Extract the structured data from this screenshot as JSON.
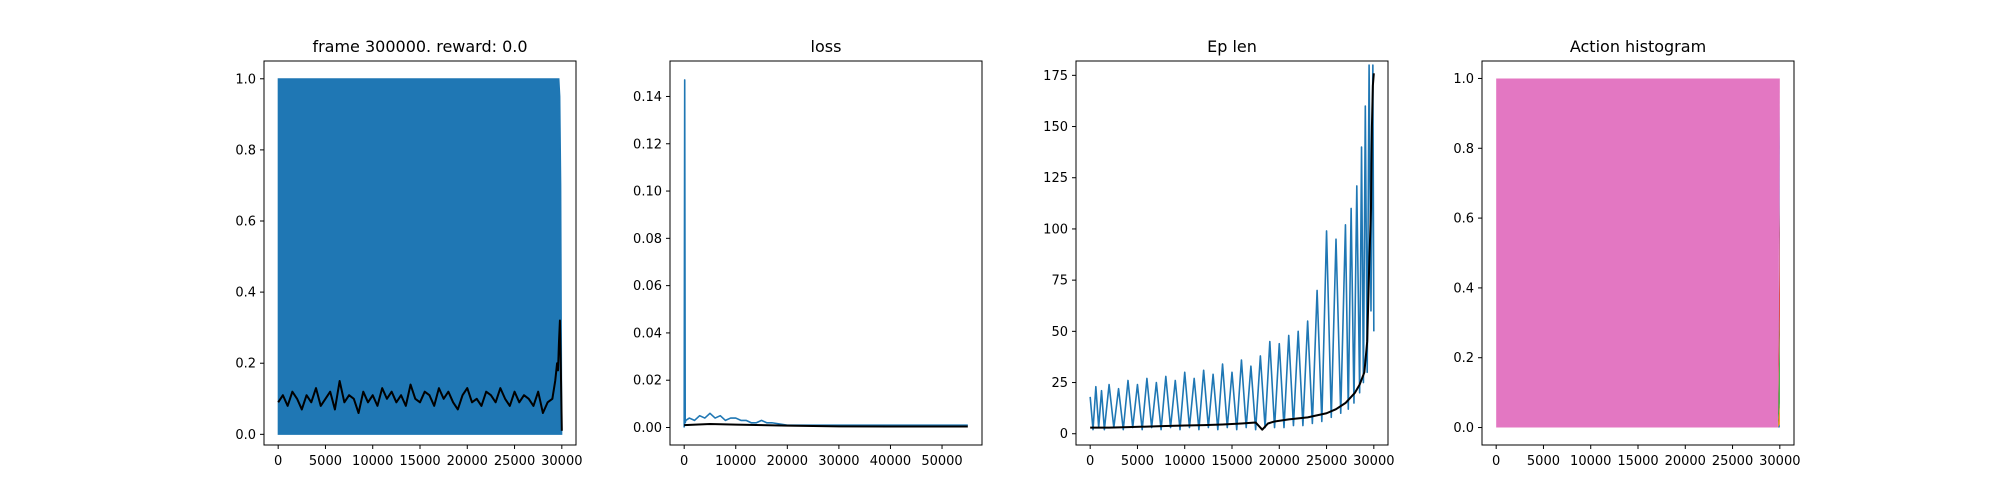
{
  "figure": {
    "background": "#ffffff"
  },
  "colors": {
    "raw": "#1f77b4",
    "smooth": "#000000",
    "hist": [
      "#1f77b4",
      "#ff7f0e",
      "#2ca02c",
      "#d62728",
      "#9467bd",
      "#8c564b",
      "#e377c2"
    ]
  },
  "chart_data": [
    {
      "type": "line",
      "title": "frame 300000. reward: 0.0",
      "xlabel": "",
      "ylabel": "",
      "xlim": [
        -1500,
        31500
      ],
      "ylim": [
        -0.03,
        1.05
      ],
      "xticks": [
        0,
        5000,
        10000,
        15000,
        20000,
        25000,
        30000
      ],
      "yticks": [
        0.0,
        0.2,
        0.4,
        0.6,
        0.8,
        1.0
      ],
      "ytick_labels": [
        "0.0",
        "0.2",
        "0.4",
        "0.6",
        "0.8",
        "1.0"
      ],
      "grid": false,
      "series": [
        {
          "role": "raw",
          "style": "band",
          "x": [
            0,
            29700,
            29800,
            29900,
            30000
          ],
          "low": [
            0,
            0,
            0,
            0,
            0
          ],
          "high": [
            1.0,
            1.0,
            0.95,
            0.7,
            0.05
          ]
        },
        {
          "role": "smooth",
          "style": "line",
          "x": [
            0,
            500,
            1000,
            1500,
            2000,
            2500,
            3000,
            3500,
            4000,
            4500,
            5000,
            5500,
            6000,
            6500,
            7000,
            7500,
            8000,
            8500,
            9000,
            9500,
            10000,
            10500,
            11000,
            11500,
            12000,
            12500,
            13000,
            13500,
            14000,
            14500,
            15000,
            15500,
            16000,
            16500,
            17000,
            17500,
            18000,
            18500,
            19000,
            19500,
            20000,
            20500,
            21000,
            21500,
            22000,
            22500,
            23000,
            23500,
            24000,
            24500,
            25000,
            25500,
            26000,
            26500,
            27000,
            27500,
            28000,
            28500,
            29000,
            29300,
            29500,
            29600,
            29700,
            29800,
            29900,
            30000
          ],
          "y": [
            0.09,
            0.11,
            0.08,
            0.12,
            0.1,
            0.07,
            0.11,
            0.09,
            0.13,
            0.08,
            0.1,
            0.12,
            0.07,
            0.15,
            0.09,
            0.11,
            0.1,
            0.06,
            0.12,
            0.09,
            0.11,
            0.08,
            0.13,
            0.1,
            0.12,
            0.09,
            0.11,
            0.08,
            0.14,
            0.1,
            0.09,
            0.12,
            0.11,
            0.08,
            0.13,
            0.1,
            0.12,
            0.09,
            0.07,
            0.11,
            0.13,
            0.09,
            0.1,
            0.08,
            0.12,
            0.11,
            0.09,
            0.13,
            0.1,
            0.08,
            0.12,
            0.09,
            0.11,
            0.1,
            0.08,
            0.12,
            0.06,
            0.09,
            0.1,
            0.15,
            0.2,
            0.18,
            0.26,
            0.32,
            0.18,
            0.01
          ]
        }
      ]
    },
    {
      "type": "line",
      "title": "loss",
      "xlabel": "",
      "ylabel": "",
      "xlim": [
        -2750,
        57750
      ],
      "ylim": [
        -0.0074,
        0.155
      ],
      "xticks": [
        0,
        10000,
        20000,
        30000,
        40000,
        50000
      ],
      "yticks": [
        0.0,
        0.02,
        0.04,
        0.06,
        0.08,
        0.1,
        0.12,
        0.14
      ],
      "ytick_labels": [
        "0.00",
        "0.02",
        "0.04",
        "0.06",
        "0.08",
        "0.10",
        "0.12",
        "0.14"
      ],
      "grid": false,
      "series": [
        {
          "role": "raw",
          "style": "line",
          "x": [
            0,
            100,
            200,
            300,
            1000,
            2000,
            3000,
            4000,
            5000,
            6000,
            7000,
            8000,
            9000,
            10000,
            11000,
            12000,
            13000,
            14000,
            15000,
            16000,
            17000,
            20000,
            25000,
            30000,
            35000,
            40000,
            45000,
            50000,
            55000
          ],
          "y": [
            0.0,
            0.147,
            0.002,
            0.003,
            0.004,
            0.003,
            0.005,
            0.004,
            0.006,
            0.004,
            0.005,
            0.003,
            0.004,
            0.004,
            0.003,
            0.003,
            0.002,
            0.002,
            0.003,
            0.002,
            0.002,
            0.001,
            0.001,
            0.001,
            0.001,
            0.001,
            0.001,
            0.001,
            0.001
          ]
        },
        {
          "role": "smooth",
          "style": "line",
          "x": [
            0,
            5000,
            10000,
            20000,
            30000,
            40000,
            50000,
            55000
          ],
          "y": [
            0.001,
            0.0015,
            0.0012,
            0.0008,
            0.0005,
            0.0004,
            0.0004,
            0.0004
          ]
        }
      ]
    },
    {
      "type": "line",
      "title": "Ep len",
      "xlabel": "",
      "ylabel": "",
      "xlim": [
        -1500,
        31500
      ],
      "ylim": [
        -5.5,
        182
      ],
      "xticks": [
        0,
        5000,
        10000,
        15000,
        20000,
        25000,
        30000
      ],
      "yticks": [
        0,
        25,
        50,
        75,
        100,
        125,
        150,
        175
      ],
      "ytick_labels": [
        "0",
        "25",
        "50",
        "75",
        "100",
        "125",
        "150",
        "175"
      ],
      "grid": false,
      "series": [
        {
          "role": "raw",
          "style": "line",
          "x": [
            0,
            300,
            600,
            900,
            1200,
            1500,
            2000,
            2500,
            3000,
            3500,
            4000,
            4500,
            5000,
            5500,
            6000,
            6500,
            7000,
            7500,
            8000,
            8500,
            9000,
            9500,
            10000,
            10500,
            11000,
            11500,
            12000,
            12500,
            13000,
            13500,
            14000,
            14500,
            15000,
            15500,
            16000,
            16500,
            17000,
            17500,
            18000,
            18500,
            19000,
            19500,
            20000,
            20500,
            21000,
            21500,
            22000,
            22500,
            23000,
            23500,
            24000,
            24500,
            25000,
            25500,
            26000,
            26500,
            27000,
            27300,
            27600,
            27900,
            28200,
            28500,
            28700,
            28900,
            29100,
            29300,
            29500,
            29700,
            29900,
            30000
          ],
          "y": [
            18,
            2,
            23,
            3,
            21,
            2,
            24,
            3,
            22,
            2,
            26,
            3,
            24,
            2,
            27,
            3,
            25,
            2,
            28,
            3,
            26,
            2,
            30,
            3,
            27,
            2,
            31,
            3,
            29,
            2,
            34,
            3,
            30,
            2,
            36,
            3,
            33,
            2,
            38,
            3,
            45,
            3,
            44,
            3,
            48,
            4,
            50,
            4,
            55,
            5,
            70,
            6,
            99,
            8,
            95,
            10,
            102,
            12,
            110,
            15,
            121,
            20,
            140,
            25,
            160,
            30,
            180,
            60,
            180,
            50
          ]
        },
        {
          "role": "smooth",
          "style": "line",
          "x": [
            0,
            2000,
            4000,
            6000,
            8000,
            10000,
            12000,
            14000,
            16000,
            17500,
            18200,
            18800,
            19500,
            21000,
            23000,
            25000,
            26000,
            27000,
            28000,
            28500,
            29000,
            29300,
            29500,
            29700,
            29800,
            29900,
            30000
          ],
          "y": [
            3,
            3,
            3.2,
            3.5,
            3.8,
            4,
            4.2,
            4.5,
            5,
            5.5,
            2,
            5,
            6,
            7,
            8,
            10,
            12,
            15,
            20,
            24,
            30,
            45,
            80,
            110,
            150,
            170,
            176
          ]
        }
      ]
    },
    {
      "type": "area",
      "title": "Action histogram",
      "xlabel": "",
      "ylabel": "",
      "xlim": [
        -1500,
        31500
      ],
      "ylim": [
        -0.05,
        1.05
      ],
      "xticks": [
        0,
        5000,
        10000,
        15000,
        20000,
        25000,
        30000
      ],
      "yticks": [
        0.0,
        0.2,
        0.4,
        0.6,
        0.8,
        1.0
      ],
      "ytick_labels": [
        "0.0",
        "0.2",
        "0.4",
        "0.6",
        "0.8",
        "1.0"
      ],
      "grid": false,
      "x": [
        0,
        29800,
        30000
      ],
      "series": [
        {
          "values": [
            0,
            0,
            0.01
          ],
          "color_index": 0
        },
        {
          "values": [
            0,
            0,
            0.06
          ],
          "color_index": 1
        },
        {
          "values": [
            0,
            0,
            0.25
          ],
          "color_index": 2
        },
        {
          "values": [
            0,
            0,
            0.35
          ],
          "color_index": 3
        },
        {
          "values": [
            0,
            0,
            0.3
          ],
          "color_index": 4
        },
        {
          "values": [
            0,
            0,
            0.0
          ],
          "color_index": 5
        },
        {
          "values": [
            1.0,
            1.0,
            0.03
          ],
          "color_index": 6
        }
      ]
    }
  ]
}
